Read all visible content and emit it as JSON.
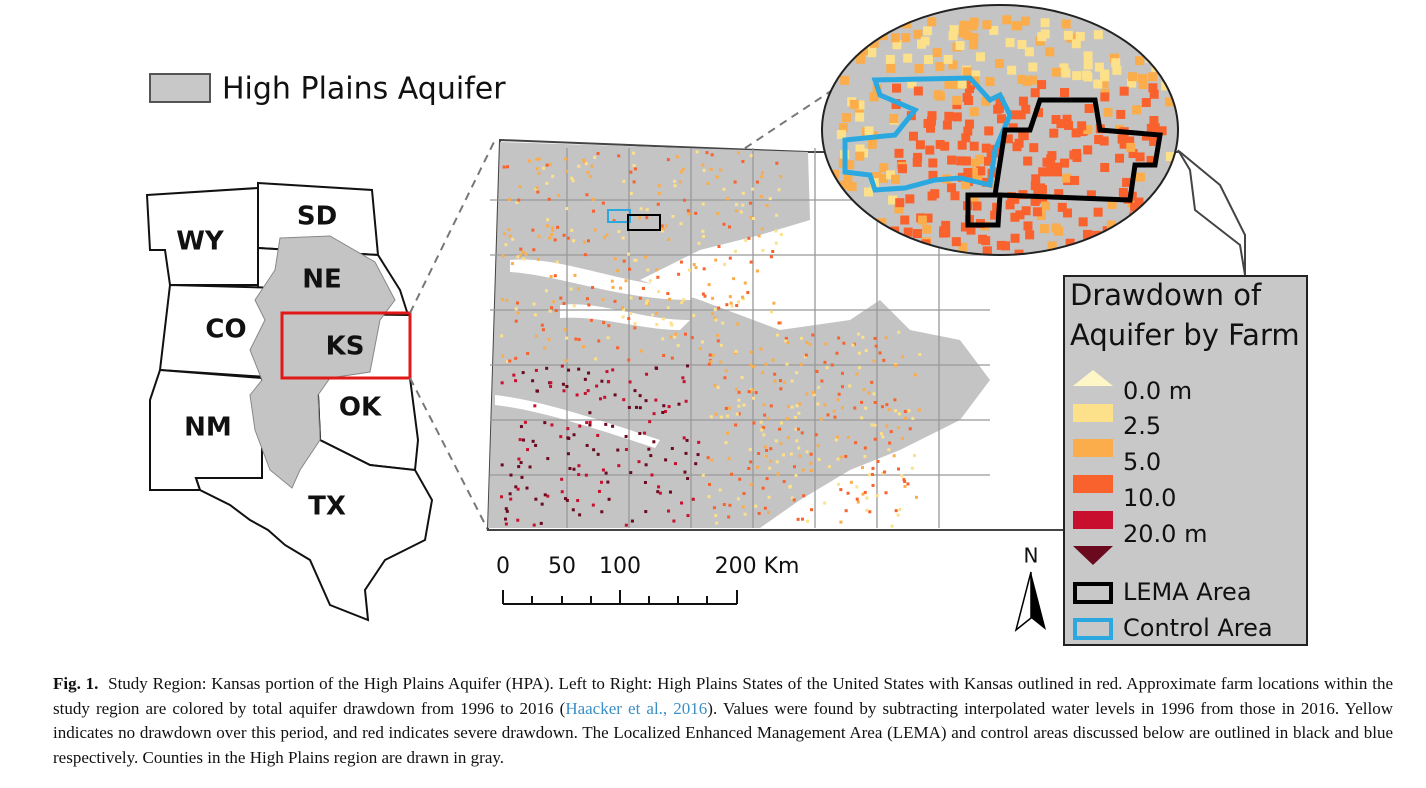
{
  "legend": {
    "hpa": "High Plains Aquifer"
  },
  "states": [
    "WY",
    "SD",
    "NE",
    "CO",
    "KS",
    "NM",
    "OK",
    "TX"
  ],
  "scale_bar": [
    "0",
    "50",
    "100",
    "200 Km"
  ],
  "north": "N",
  "drawdown_legend": {
    "title": [
      "Drawdown of",
      "Aquifer by Farm"
    ],
    "items": [
      "0.0 m",
      "2.5",
      "5.0",
      "10.0",
      "20.0 m"
    ],
    "outlines": [
      "LEMA Area",
      "Control Area"
    ]
  },
  "caption": {
    "label": "Fig. 1.",
    "text": "Study Region: Kansas portion of the High Plains Aquifer (HPA). Left to Right: High Plains States of the United States with Kansas outlined in red. Approximate farm locations within the study region are colored by total aquifer drawdown from 1996 to 2016 (",
    "citation": "Haacker et al., 2016",
    "text_after": "). Values were found by subtracting interpolated water levels in 1996 from those in 2016. Yellow indicates no drawdown over this period, and red indicates severe drawdown. The Localized Enhanced Management Area (LEMA) and control areas discussed below are outlined in black and blue respectively. Counties in the High Plains region are drawn in gray."
  }
}
